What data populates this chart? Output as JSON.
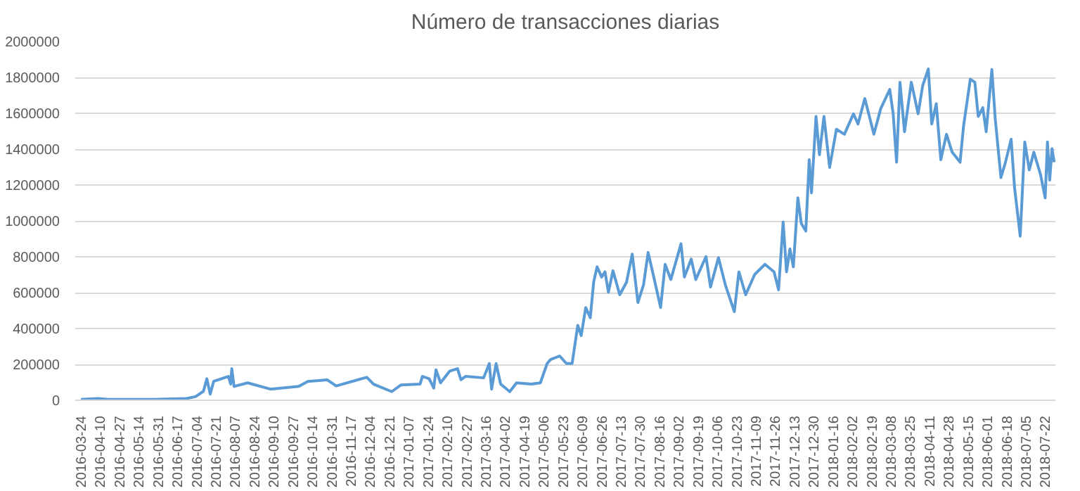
{
  "chart_data": {
    "type": "line",
    "title": "Número de transacciones diarias",
    "x": [
      "2016-03-24",
      "2016-04-08",
      "2016-04-17",
      "2016-05-27",
      "2016-06-25",
      "2016-07-03",
      "2016-07-10",
      "2016-07-13",
      "2016-07-16",
      "2016-07-19",
      "2016-07-26",
      "2016-08-01",
      "2016-08-03",
      "2016-08-04",
      "2016-08-06",
      "2016-08-18",
      "2016-09-07",
      "2016-10-02",
      "2016-10-10",
      "2016-10-27",
      "2016-11-04",
      "2016-12-01",
      "2016-12-07",
      "2016-12-23",
      "2016-12-31",
      "2017-01-17",
      "2017-01-19",
      "2017-01-25",
      "2017-01-29",
      "2017-01-31",
      "2017-02-04",
      "2017-02-12",
      "2017-02-19",
      "2017-02-22",
      "2017-02-26",
      "2017-03-14",
      "2017-03-19",
      "2017-03-21",
      "2017-03-25",
      "2017-03-29",
      "2017-04-06",
      "2017-04-12",
      "2017-04-25",
      "2017-05-03",
      "2017-05-09",
      "2017-05-12",
      "2017-05-20",
      "2017-05-26",
      "2017-05-31",
      "2017-06-05",
      "2017-06-08",
      "2017-06-12",
      "2017-06-16",
      "2017-06-19",
      "2017-06-22",
      "2017-06-26",
      "2017-06-29",
      "2017-07-02",
      "2017-07-06",
      "2017-07-12",
      "2017-07-18",
      "2017-07-23",
      "2017-07-28",
      "2017-08-02",
      "2017-08-06",
      "2017-08-12",
      "2017-08-17",
      "2017-08-21",
      "2017-08-26",
      "2017-09-04",
      "2017-09-07",
      "2017-09-13",
      "2017-09-17",
      "2017-09-26",
      "2017-09-30",
      "2017-10-07",
      "2017-10-13",
      "2017-10-21",
      "2017-10-25",
      "2017-10-31",
      "2017-11-08",
      "2017-11-17",
      "2017-11-25",
      "2017-11-29",
      "2017-12-03",
      "2017-12-06",
      "2017-12-09",
      "2017-12-12",
      "2017-12-16",
      "2017-12-19",
      "2017-12-23",
      "2017-12-26",
      "2017-12-28",
      "2018-01-01",
      "2018-01-04",
      "2018-01-08",
      "2018-01-13",
      "2018-01-19",
      "2018-01-26",
      "2018-02-03",
      "2018-02-07",
      "2018-02-13",
      "2018-02-21",
      "2018-02-27",
      "2018-03-07",
      "2018-03-10",
      "2018-03-13",
      "2018-03-16",
      "2018-03-20",
      "2018-03-26",
      "2018-04-01",
      "2018-04-05",
      "2018-04-10",
      "2018-04-13",
      "2018-04-17",
      "2018-04-21",
      "2018-04-26",
      "2018-05-01",
      "2018-05-08",
      "2018-05-11",
      "2018-05-17",
      "2018-05-21",
      "2018-05-24",
      "2018-05-28",
      "2018-05-31",
      "2018-06-05",
      "2018-06-08",
      "2018-06-13",
      "2018-06-17",
      "2018-06-22",
      "2018-06-25",
      "2018-06-30",
      "2018-07-04",
      "2018-07-08",
      "2018-07-12",
      "2018-07-18",
      "2018-07-22",
      "2018-07-24",
      "2018-07-26",
      "2018-07-28",
      "2018-07-30"
    ],
    "series": [
      {
        "color": "#5b9bd5",
        "values": [
          5000,
          10000,
          5000,
          5000,
          10000,
          20000,
          50000,
          120000,
          34000,
          105000,
          120000,
          133000,
          90000,
          176000,
          77000,
          97000,
          62000,
          77000,
          105000,
          114000,
          80000,
          128000,
          90000,
          48000,
          85000,
          90000,
          133000,
          120000,
          68000,
          170000,
          97000,
          162000,
          176000,
          114000,
          133000,
          125000,
          205000,
          62000,
          205000,
          90000,
          48000,
          97000,
          90000,
          97000,
          205000,
          227000,
          247000,
          205000,
          205000,
          418000,
          360000,
          517000,
          460000,
          659000,
          744000,
          687000,
          716000,
          602000,
          722000,
          588000,
          659000,
          815000,
          545000,
          645000,
          824000,
          659000,
          517000,
          758000,
          673000,
          872000,
          687000,
          787000,
          673000,
          801000,
          631000,
          795000,
          645000,
          494000,
          716000,
          588000,
          702000,
          758000,
          716000,
          616000,
          994000,
          716000,
          844000,
          744000,
          1128000,
          986000,
          943000,
          1341000,
          1156000,
          1582000,
          1369000,
          1582000,
          1298000,
          1511000,
          1483000,
          1597000,
          1540000,
          1682000,
          1483000,
          1625000,
          1733000,
          1597000,
          1327000,
          1773000,
          1497000,
          1773000,
          1597000,
          1753000,
          1847000,
          1540000,
          1653000,
          1341000,
          1483000,
          1383000,
          1327000,
          1526000,
          1790000,
          1773000,
          1582000,
          1631000,
          1497000,
          1844000,
          1568000,
          1241000,
          1327000,
          1455000,
          1185000,
          915000,
          1440000,
          1284000,
          1383000,
          1256000,
          1128000,
          1440000,
          1227000,
          1403000,
          1327000
        ]
      }
    ],
    "xlim": [
      "2016-03-19",
      "2018-07-31"
    ],
    "xticks": [
      "2016-03-24",
      "2016-04-10",
      "2016-04-27",
      "2016-05-14",
      "2016-05-31",
      "2016-06-17",
      "2016-07-04",
      "2016-07-21",
      "2016-08-07",
      "2016-08-24",
      "2016-09-10",
      "2016-09-27",
      "2016-10-14",
      "2016-10-31",
      "2016-11-17",
      "2016-12-04",
      "2016-12-21",
      "2017-01-07",
      "2017-01-24",
      "2017-02-10",
      "2017-02-27",
      "2017-03-16",
      "2017-04-02",
      "2017-04-19",
      "2017-05-06",
      "2017-05-23",
      "2017-06-09",
      "2017-06-26",
      "2017-07-13",
      "2017-07-30",
      "2017-08-16",
      "2017-09-02",
      "2017-09-19",
      "2017-10-06",
      "2017-10-23",
      "2017-11-09",
      "2017-11-26",
      "2017-12-13",
      "2017-12-30",
      "2018-01-16",
      "2018-02-02",
      "2018-02-19",
      "2018-03-08",
      "2018-03-25",
      "2018-04-11",
      "2018-04-28",
      "2018-05-15",
      "2018-06-01",
      "2018-06-18",
      "2018-07-05",
      "2018-07-22"
    ],
    "ylim": [
      0,
      2000000
    ],
    "yticks": [
      0,
      200000,
      400000,
      600000,
      800000,
      1000000,
      1200000,
      1400000,
      1600000,
      1800000,
      2000000
    ],
    "grid": "y",
    "marker": "none",
    "line_style": "solid"
  }
}
